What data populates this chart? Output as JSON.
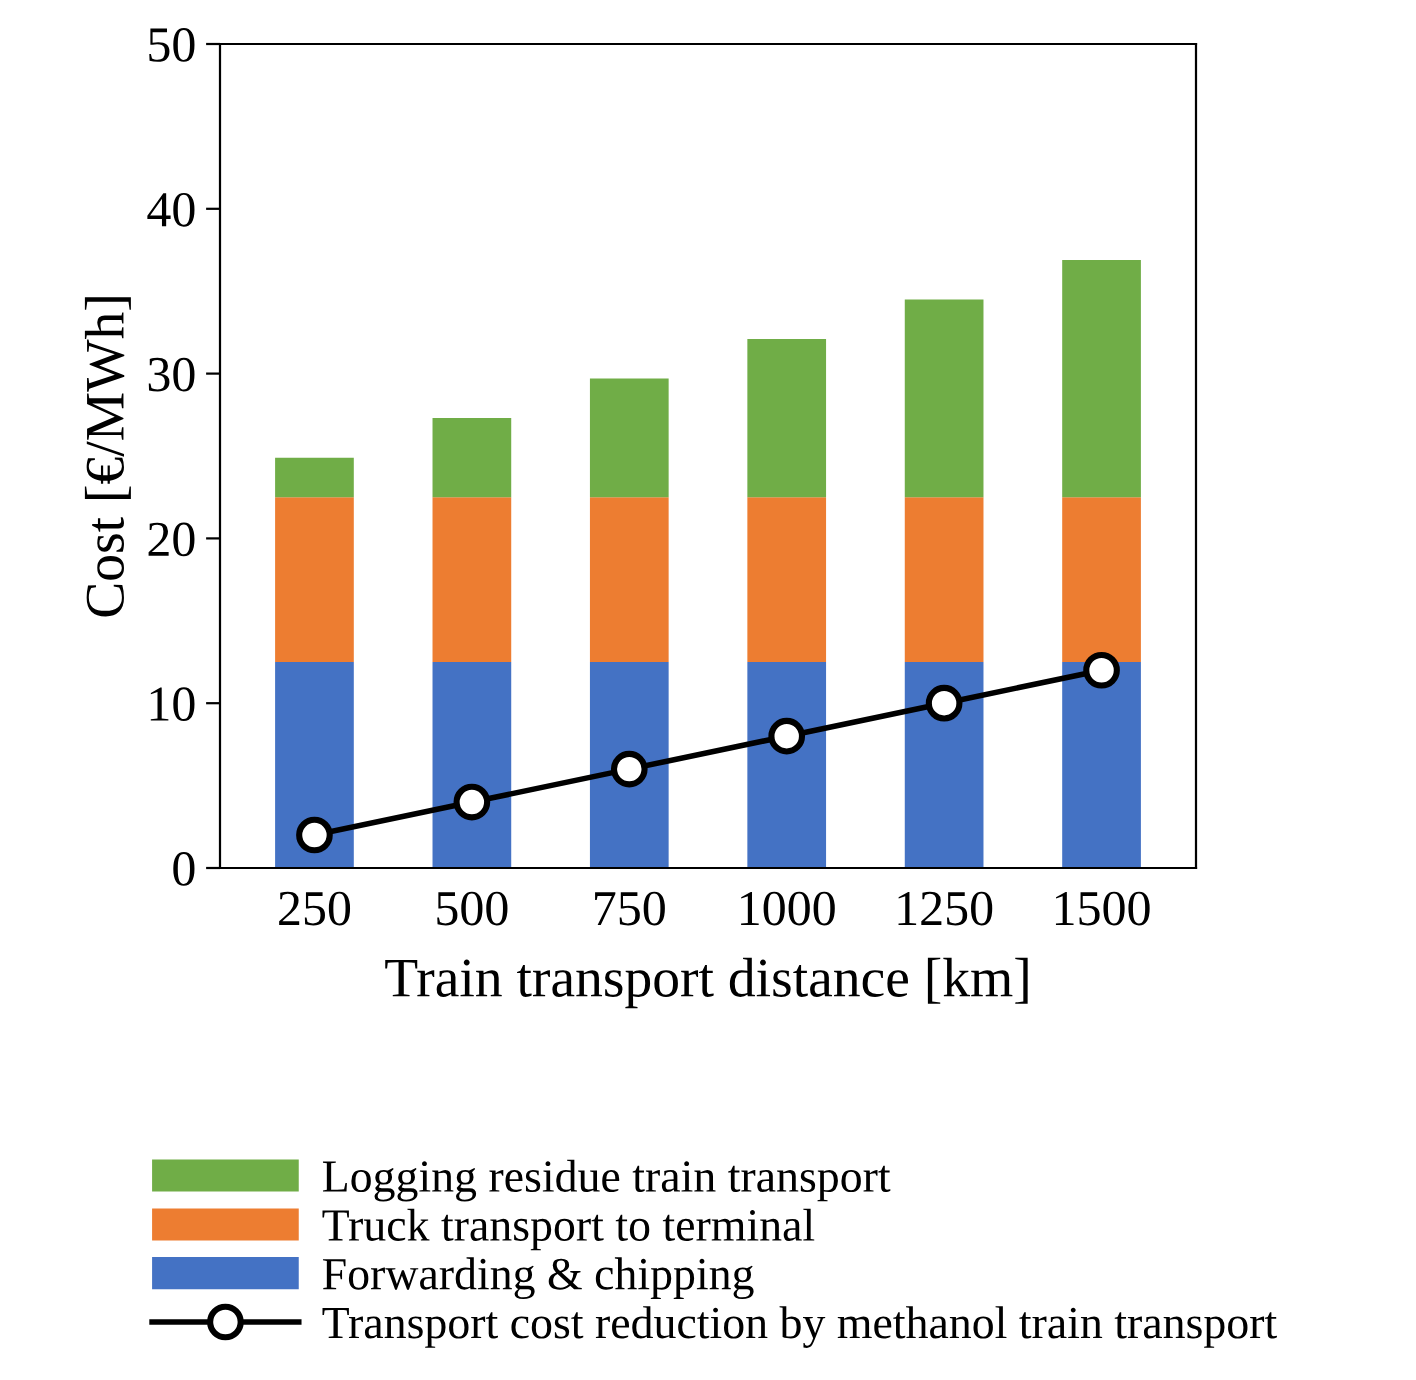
{
  "chart_data": {
    "type": "bar",
    "stacked": true,
    "xlabel": "Train transport distance [km]",
    "ylabel": "Cost [€/MWh]",
    "categories": [
      "250",
      "500",
      "750",
      "1000",
      "1250",
      "1500"
    ],
    "series": [
      {
        "name": "Forwarding & chipping",
        "color": "#4472c4",
        "values": [
          12.5,
          12.5,
          12.5,
          12.5,
          12.5,
          12.5
        ]
      },
      {
        "name": "Truck transport to terminal",
        "color": "#ed7d31",
        "values": [
          10,
          10,
          10,
          10,
          10,
          10
        ]
      },
      {
        "name": "Logging residue train transport",
        "color": "#70ad47",
        "values": [
          2.4,
          4.8,
          7.2,
          9.6,
          12.0,
          14.4
        ]
      },
      {
        "name": "Transport cost reduction by methanol train transport",
        "type": "line",
        "color": "#000000",
        "marker": "circle",
        "values": [
          2,
          4,
          6,
          8,
          10,
          12
        ]
      }
    ],
    "ylim": [
      0,
      50
    ],
    "yticks": [
      0,
      10,
      20,
      30,
      40,
      50
    ],
    "grid": false,
    "legend": "bottom"
  }
}
